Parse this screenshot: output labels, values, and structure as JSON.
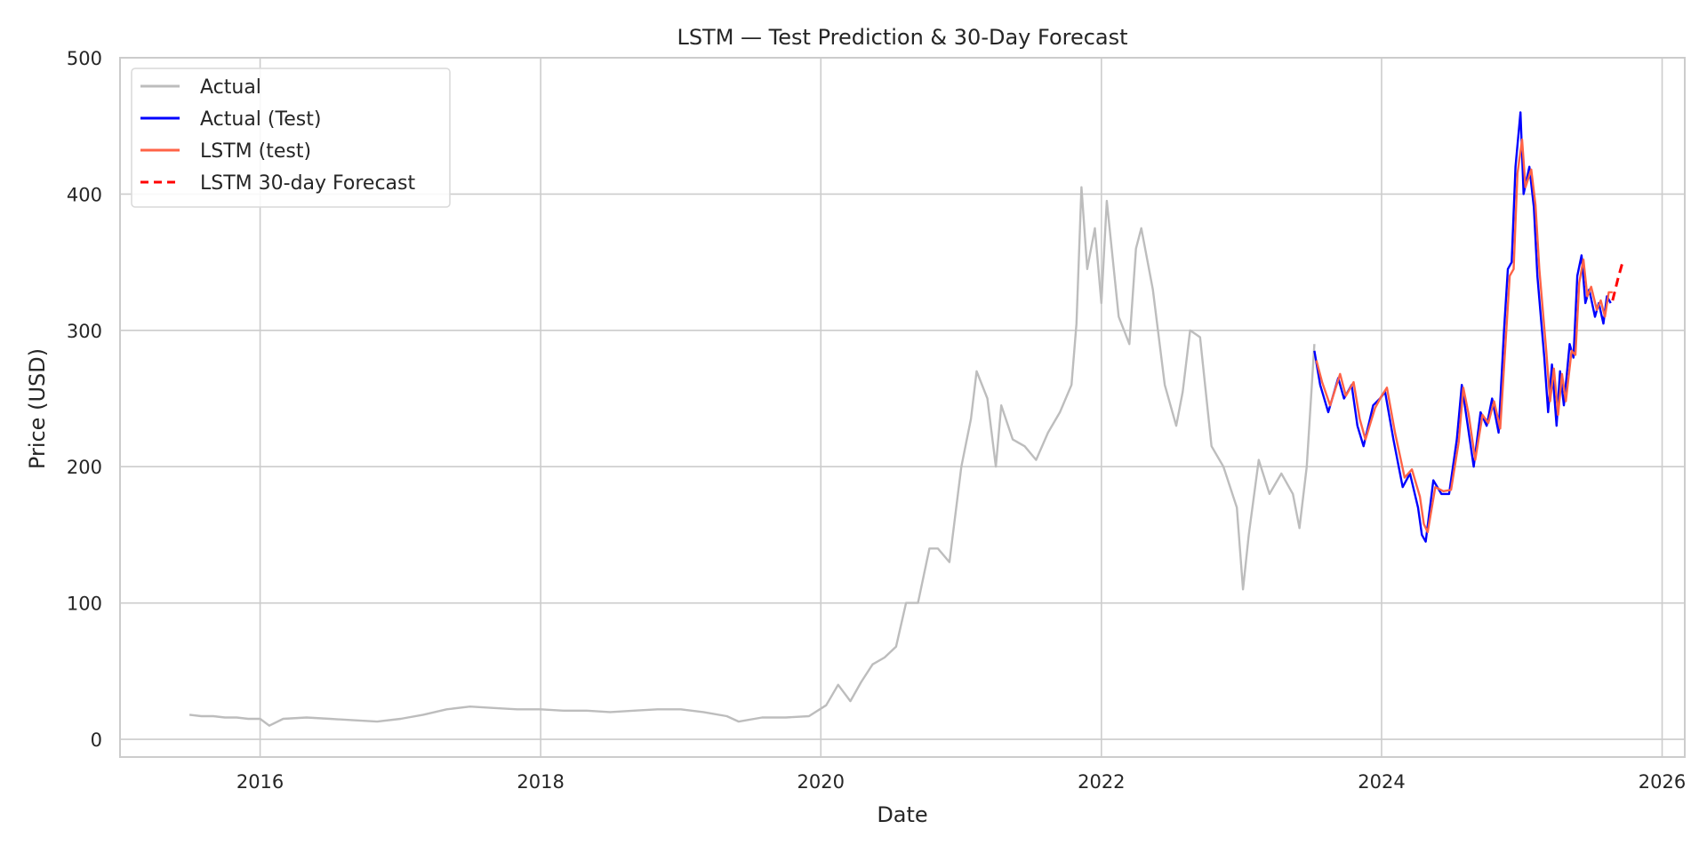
{
  "chart_data": {
    "type": "line",
    "title": "LSTM — Test Prediction & 30-Day Forecast",
    "xlabel": "Date",
    "ylabel": "Price (USD)",
    "xlim": [
      "2015-01-01",
      "2026-03-01"
    ],
    "ylim": [
      -13,
      500
    ],
    "x_ticks": [
      "2016",
      "2018",
      "2020",
      "2022",
      "2024",
      "2026"
    ],
    "y_ticks": [
      0,
      100,
      200,
      300,
      400,
      500
    ],
    "grid": true,
    "legend_position": "top-left",
    "series": [
      {
        "name": "Actual",
        "color": "#bdbdbd",
        "style": "solid",
        "x": [
          "2015-07-01",
          "2015-08-01",
          "2015-09-01",
          "2015-10-01",
          "2015-11-01",
          "2015-12-01",
          "2016-01-01",
          "2016-01-25",
          "2016-03-01",
          "2016-05-01",
          "2016-07-01",
          "2016-09-01",
          "2016-11-01",
          "2017-01-01",
          "2017-03-01",
          "2017-05-01",
          "2017-07-01",
          "2017-09-01",
          "2017-11-01",
          "2018-01-01",
          "2018-03-01",
          "2018-05-01",
          "2018-07-01",
          "2018-09-01",
          "2018-11-01",
          "2019-01-01",
          "2019-03-01",
          "2019-05-01",
          "2019-06-01",
          "2019-08-01",
          "2019-10-01",
          "2019-12-01",
          "2020-01-15",
          "2020-02-15",
          "2020-03-18",
          "2020-04-15",
          "2020-05-15",
          "2020-06-15",
          "2020-07-15",
          "2020-08-10",
          "2020-09-10",
          "2020-10-10",
          "2020-11-01",
          "2020-12-01",
          "2021-01-01",
          "2021-01-26",
          "2021-02-10",
          "2021-03-10",
          "2021-04-01",
          "2021-04-15",
          "2021-05-15",
          "2021-06-15",
          "2021-07-15",
          "2021-08-15",
          "2021-09-15",
          "2021-10-15",
          "2021-10-28",
          "2021-11-10",
          "2021-11-25",
          "2021-12-15",
          "2022-01-01",
          "2022-01-15",
          "2022-02-15",
          "2022-03-15",
          "2022-04-01",
          "2022-04-15",
          "2022-05-15",
          "2022-06-15",
          "2022-07-15",
          "2022-08-01",
          "2022-08-20",
          "2022-09-15",
          "2022-10-15",
          "2022-11-15",
          "2022-12-20",
          "2023-01-05",
          "2023-01-20",
          "2023-02-15",
          "2023-03-15",
          "2023-04-15",
          "2023-05-15",
          "2023-06-01",
          "2023-06-20",
          "2023-07-10"
        ],
        "values": [
          18,
          17,
          17,
          16,
          16,
          15,
          15,
          10,
          15,
          16,
          15,
          14,
          13,
          15,
          18,
          22,
          24,
          23,
          22,
          22,
          21,
          21,
          20,
          21,
          22,
          22,
          20,
          17,
          13,
          16,
          16,
          17,
          25,
          40,
          28,
          42,
          55,
          60,
          68,
          100,
          100,
          140,
          140,
          130,
          200,
          235,
          270,
          250,
          200,
          245,
          220,
          215,
          205,
          225,
          240,
          260,
          305,
          405,
          345,
          375,
          320,
          395,
          310,
          290,
          360,
          375,
          330,
          260,
          230,
          255,
          300,
          295,
          215,
          200,
          170,
          110,
          150,
          205,
          180,
          195,
          180,
          155,
          200,
          290
        ]
      },
      {
        "name": "Actual (Test)",
        "color": "#0000ff",
        "style": "solid",
        "x": [
          "2023-07-10",
          "2023-07-25",
          "2023-08-15",
          "2023-09-10",
          "2023-09-25",
          "2023-10-15",
          "2023-10-30",
          "2023-11-15",
          "2023-12-10",
          "2023-12-28",
          "2024-01-10",
          "2024-02-01",
          "2024-02-25",
          "2024-03-15",
          "2024-04-05",
          "2024-04-15",
          "2024-04-25",
          "2024-05-15",
          "2024-06-05",
          "2024-06-25",
          "2024-07-15",
          "2024-07-28",
          "2024-08-10",
          "2024-08-28",
          "2024-09-15",
          "2024-10-01",
          "2024-10-15",
          "2024-11-01",
          "2024-11-15",
          "2024-11-25",
          "2024-12-05",
          "2024-12-15",
          "2024-12-28",
          "2025-01-05",
          "2025-01-20",
          "2025-02-01",
          "2025-02-10",
          "2025-02-28",
          "2025-03-10",
          "2025-03-20",
          "2025-04-01",
          "2025-04-10",
          "2025-04-20",
          "2025-05-05",
          "2025-05-15",
          "2025-05-25",
          "2025-06-05",
          "2025-06-15",
          "2025-06-25",
          "2025-07-10",
          "2025-07-20",
          "2025-08-01",
          "2025-08-10",
          "2025-08-20"
        ],
        "values": [
          285,
          260,
          240,
          265,
          250,
          260,
          230,
          215,
          245,
          250,
          255,
          220,
          185,
          195,
          170,
          150,
          145,
          190,
          180,
          180,
          220,
          260,
          235,
          200,
          240,
          230,
          250,
          225,
          300,
          345,
          350,
          420,
          460,
          400,
          420,
          390,
          340,
          280,
          240,
          275,
          230,
          270,
          245,
          290,
          280,
          340,
          355,
          320,
          330,
          310,
          320,
          305,
          325,
          320
        ]
      },
      {
        "name": "LSTM (test)",
        "color": "#ff6347",
        "style": "solid",
        "x": [
          "2023-07-15",
          "2023-07-30",
          "2023-08-20",
          "2023-09-15",
          "2023-09-30",
          "2023-10-20",
          "2023-11-05",
          "2023-11-20",
          "2023-12-15",
          "2024-01-01",
          "2024-01-15",
          "2024-02-05",
          "2024-03-01",
          "2024-03-20",
          "2024-04-10",
          "2024-04-20",
          "2024-04-30",
          "2024-05-20",
          "2024-06-10",
          "2024-06-30",
          "2024-07-20",
          "2024-08-01",
          "2024-08-15",
          "2024-09-01",
          "2024-09-20",
          "2024-10-05",
          "2024-10-20",
          "2024-11-05",
          "2024-11-20",
          "2024-11-30",
          "2024-12-10",
          "2024-12-20",
          "2025-01-01",
          "2025-01-10",
          "2025-01-25",
          "2025-02-05",
          "2025-02-15",
          "2025-03-05",
          "2025-03-15",
          "2025-03-25",
          "2025-04-05",
          "2025-04-15",
          "2025-04-25",
          "2025-05-10",
          "2025-05-20",
          "2025-05-30",
          "2025-06-10",
          "2025-06-20",
          "2025-06-30",
          "2025-07-15",
          "2025-07-25",
          "2025-08-05",
          "2025-08-15",
          "2025-08-25"
        ],
        "values": [
          278,
          262,
          245,
          268,
          252,
          262,
          235,
          220,
          243,
          252,
          258,
          225,
          192,
          198,
          178,
          158,
          152,
          185,
          182,
          183,
          218,
          258,
          238,
          205,
          238,
          232,
          248,
          228,
          295,
          340,
          345,
          415,
          440,
          405,
          418,
          392,
          345,
          285,
          248,
          272,
          238,
          268,
          248,
          285,
          282,
          335,
          352,
          325,
          332,
          315,
          322,
          310,
          328,
          328
        ]
      },
      {
        "name": "LSTM 30-day Forecast",
        "color": "#ff0000",
        "style": "dashed",
        "x": [
          "2025-08-25",
          "2025-09-01",
          "2025-09-08",
          "2025-09-15",
          "2025-09-22"
        ],
        "values": [
          322,
          330,
          338,
          345,
          352
        ]
      }
    ]
  }
}
